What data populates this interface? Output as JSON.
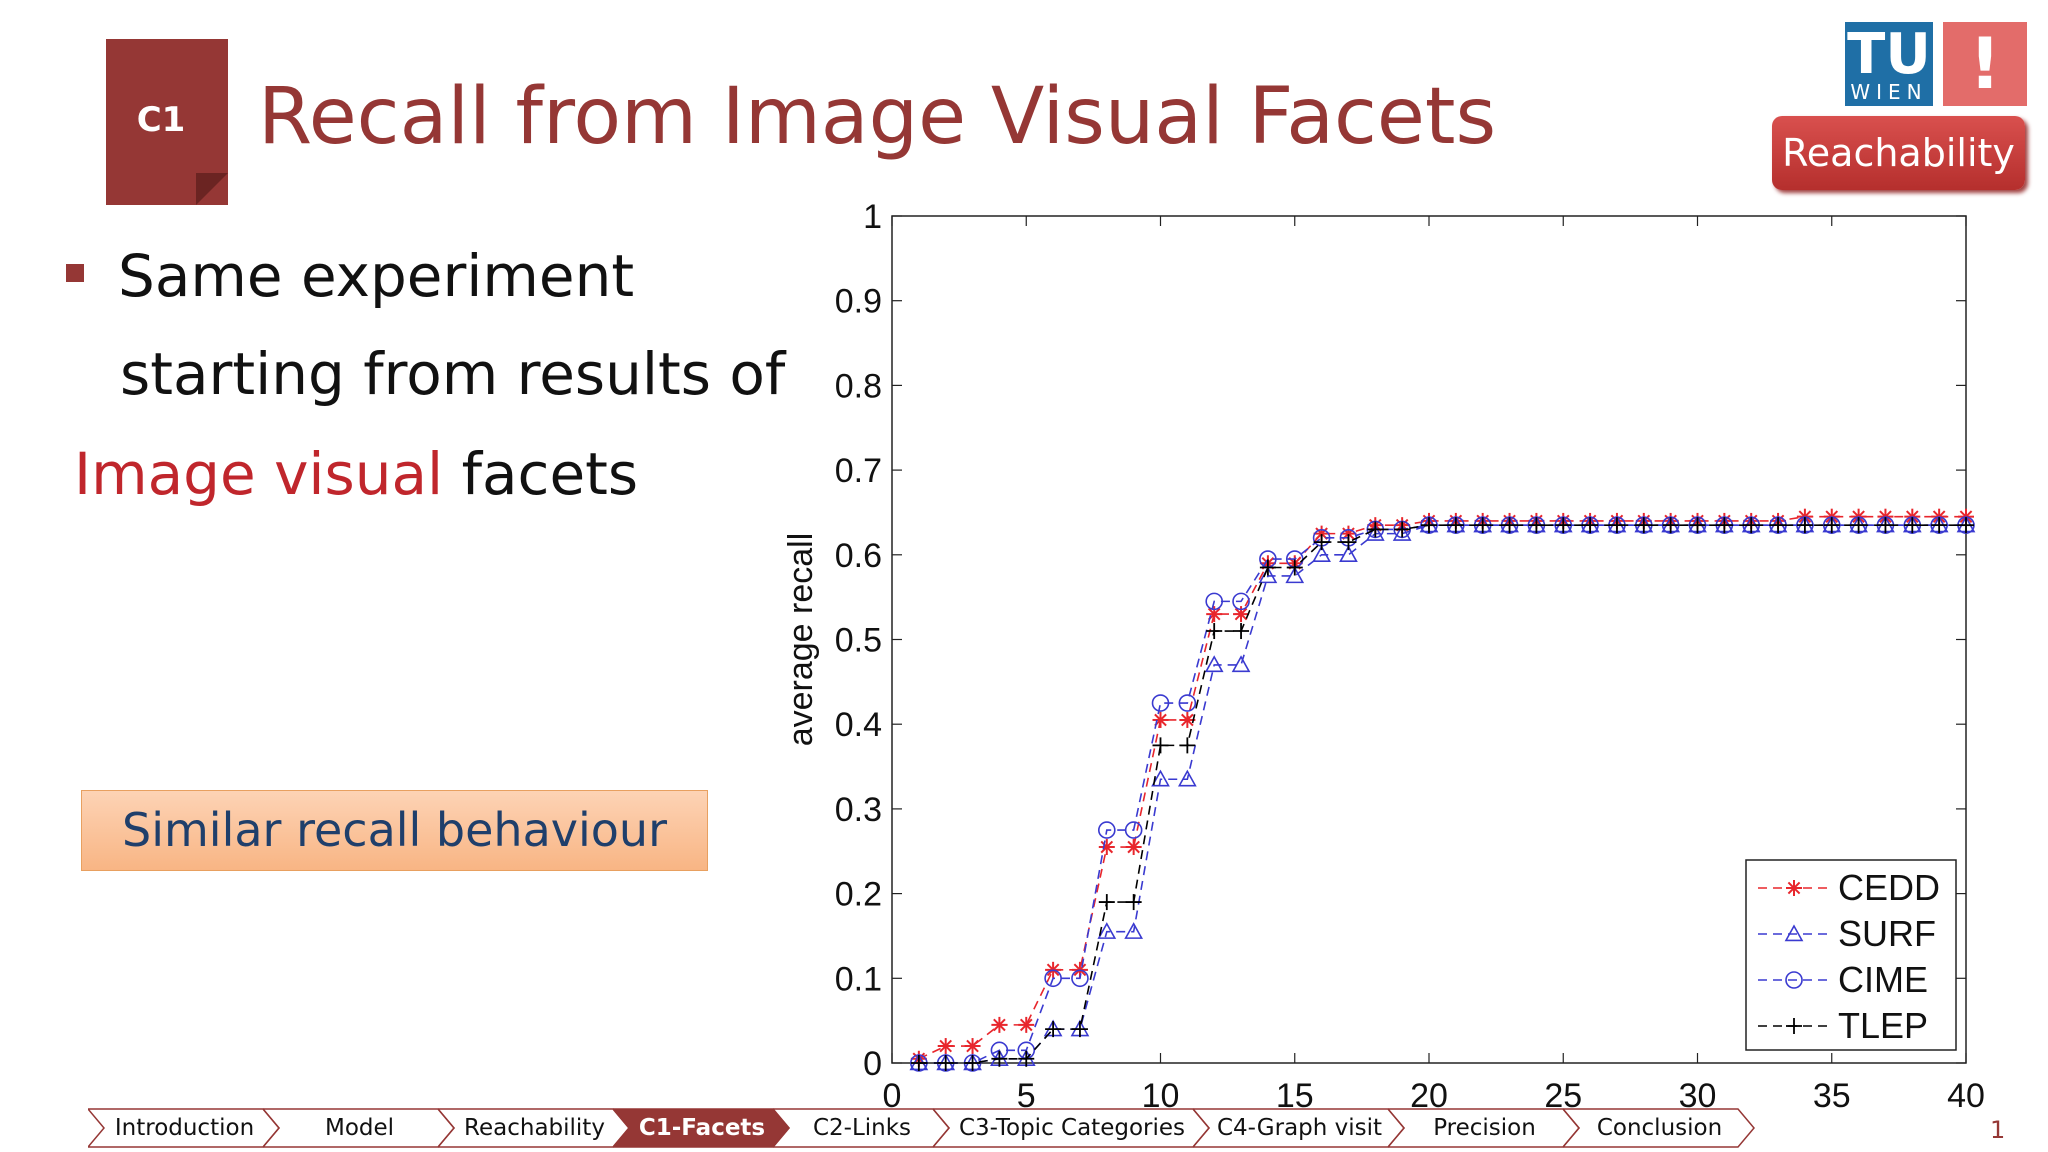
{
  "header": {
    "badge": "C1",
    "title": "Recall from Image Visual Facets",
    "logo_tu": "TU",
    "logo_wien": "WIEN",
    "logo_exclaim": "!",
    "section_button": "Reachability"
  },
  "content": {
    "bullet_line1": "Same experiment",
    "bullet_line2": "starting from results of",
    "bullet_line3_highlight": "Image visual",
    "bullet_line3_rest": "facets",
    "callout": "Similar recall behaviour"
  },
  "colors": {
    "accent": "#953735",
    "highlight": "#c0262c",
    "cedd": "#e8262c",
    "blue_series": "#3a3ad0",
    "tlep": "#000000"
  },
  "chart_data": {
    "type": "line",
    "ylabel": "average recall",
    "xlabel": "",
    "xlim": [
      0,
      40
    ],
    "ylim": [
      0,
      1
    ],
    "x_ticks": [
      0,
      5,
      10,
      15,
      20,
      25,
      30,
      35,
      40
    ],
    "y_ticks": [
      "0",
      "0.1",
      "0.2",
      "0.3",
      "0.4",
      "0.5",
      "0.6",
      "0.7",
      "0.8",
      "0.9",
      "1"
    ],
    "legend_position": "bottom-right",
    "grid": false,
    "x": [
      1,
      2,
      3,
      4,
      5,
      6,
      7,
      8,
      9,
      10,
      11,
      12,
      13,
      14,
      15,
      16,
      17,
      18,
      19,
      20,
      21,
      22,
      23,
      24,
      25,
      26,
      27,
      28,
      29,
      30,
      31,
      32,
      33,
      34,
      35,
      36,
      37,
      38,
      39,
      40
    ],
    "series": [
      {
        "name": "CEDD",
        "marker": "star",
        "values": [
          0.005,
          0.02,
          0.02,
          0.045,
          0.045,
          0.11,
          0.11,
          0.255,
          0.255,
          0.405,
          0.405,
          0.53,
          0.53,
          0.59,
          0.59,
          0.625,
          0.625,
          0.635,
          0.635,
          0.64,
          0.64,
          0.64,
          0.64,
          0.64,
          0.64,
          0.64,
          0.64,
          0.64,
          0.64,
          0.64,
          0.64,
          0.64,
          0.64,
          0.645,
          0.645,
          0.645,
          0.645,
          0.645,
          0.645,
          0.645
        ]
      },
      {
        "name": "SURF",
        "marker": "triangle",
        "values": [
          0,
          0,
          0,
          0.005,
          0.005,
          0.04,
          0.04,
          0.155,
          0.155,
          0.335,
          0.335,
          0.47,
          0.47,
          0.575,
          0.575,
          0.6,
          0.6,
          0.625,
          0.625,
          0.635,
          0.635,
          0.635,
          0.635,
          0.635,
          0.635,
          0.635,
          0.635,
          0.635,
          0.635,
          0.635,
          0.635,
          0.635,
          0.635,
          0.635,
          0.635,
          0.635,
          0.635,
          0.635,
          0.635,
          0.635
        ]
      },
      {
        "name": "CIME",
        "marker": "circle",
        "values": [
          0,
          0,
          0,
          0.015,
          0.015,
          0.1,
          0.1,
          0.275,
          0.275,
          0.425,
          0.425,
          0.545,
          0.545,
          0.595,
          0.595,
          0.62,
          0.62,
          0.63,
          0.63,
          0.635,
          0.635,
          0.635,
          0.635,
          0.635,
          0.635,
          0.635,
          0.635,
          0.635,
          0.635,
          0.635,
          0.635,
          0.635,
          0.635,
          0.635,
          0.635,
          0.635,
          0.635,
          0.635,
          0.635,
          0.635
        ]
      },
      {
        "name": "TLEP",
        "marker": "plus",
        "values": [
          0,
          0,
          0,
          0.005,
          0.005,
          0.04,
          0.04,
          0.19,
          0.19,
          0.375,
          0.375,
          0.51,
          0.51,
          0.585,
          0.585,
          0.615,
          0.615,
          0.63,
          0.63,
          0.635,
          0.635,
          0.635,
          0.635,
          0.635,
          0.635,
          0.635,
          0.635,
          0.635,
          0.635,
          0.635,
          0.635,
          0.635,
          0.635,
          0.635,
          0.635,
          0.635,
          0.635,
          0.635,
          0.635,
          0.635
        ]
      }
    ]
  },
  "nav": {
    "items": [
      {
        "label": "Introduction",
        "active": false
      },
      {
        "label": "Model",
        "active": false
      },
      {
        "label": "Reachability",
        "active": false
      },
      {
        "label": "C1-Facets",
        "active": true
      },
      {
        "label": "C2-Links",
        "active": false
      },
      {
        "label": "C3-Topic Categories",
        "active": false
      },
      {
        "label": "C4-Graph visit",
        "active": false
      },
      {
        "label": "Precision",
        "active": false
      },
      {
        "label": "Conclusion",
        "active": false
      }
    ]
  },
  "page_number": "1"
}
